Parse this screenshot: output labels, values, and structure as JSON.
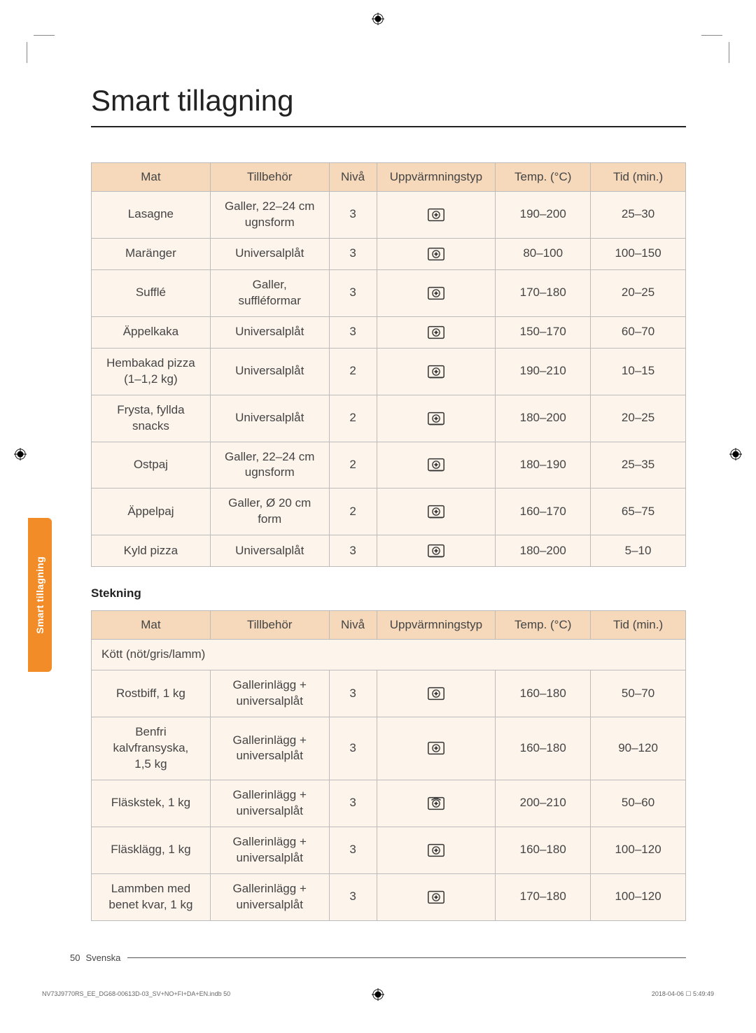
{
  "page_title": "Smart tillagning",
  "side_tab": "Smart tillagning",
  "section2_label": "Stekning",
  "footer": {
    "page_num": "50",
    "language": "Svenska"
  },
  "printer": {
    "left": "NV73J9770RS_EE_DG68-00613D-03_SV+NO+FI+DA+EN.indb   50",
    "right": "2018-04-06   ☐ 5:49:49"
  },
  "columns": [
    {
      "key": "mat",
      "label": "Mat"
    },
    {
      "key": "till",
      "label": "Tillbehör"
    },
    {
      "key": "niva",
      "label": "Nivå"
    },
    {
      "key": "upp",
      "label": "Uppvärmningstyp"
    },
    {
      "key": "temp",
      "label": "Temp. (°C)"
    },
    {
      "key": "tid",
      "label": "Tid (min.)"
    }
  ],
  "icons": {
    "fan_box": {
      "outline": "#333",
      "fan": "#333",
      "bottom_line": false,
      "top_arc": false
    },
    "fan_box_bottom": {
      "outline": "#333",
      "fan": "#333",
      "bottom_line": true,
      "top_arc": false
    },
    "fan_box_top": {
      "outline": "#333",
      "fan": "#333",
      "bottom_line": false,
      "top_arc": true
    }
  },
  "table1": {
    "rows": [
      {
        "mat": "Lasagne",
        "till": "Galler, 22–24 cm\nugnsform",
        "niva": "3",
        "icon": "fan_box",
        "temp": "190–200",
        "tid": "25–30"
      },
      {
        "mat": "Maränger",
        "till": "Universalplåt",
        "niva": "3",
        "icon": "fan_box",
        "temp": "80–100",
        "tid": "100–150"
      },
      {
        "mat": "Sufflé",
        "till": "Galler,\nsuffléformar",
        "niva": "3",
        "icon": "fan_box",
        "temp": "170–180",
        "tid": "20–25"
      },
      {
        "mat": "Äppelkaka",
        "till": "Universalplåt",
        "niva": "3",
        "icon": "fan_box",
        "temp": "150–170",
        "tid": "60–70"
      },
      {
        "mat": "Hembakad pizza\n(1–1,2 kg)",
        "till": "Universalplåt",
        "niva": "2",
        "icon": "fan_box_bottom",
        "temp": "190–210",
        "tid": "10–15"
      },
      {
        "mat": "Frysta, fyllda\nsnacks",
        "till": "Universalplåt",
        "niva": "2",
        "icon": "fan_box_bottom",
        "temp": "180–200",
        "tid": "20–25"
      },
      {
        "mat": "Ostpaj",
        "till": "Galler, 22–24 cm\nugnsform",
        "niva": "2",
        "icon": "fan_box_bottom",
        "temp": "180–190",
        "tid": "25–35"
      },
      {
        "mat": "Äppelpaj",
        "till": "Galler, Ø 20 cm\nform",
        "niva": "2",
        "icon": "fan_box_bottom",
        "temp": "160–170",
        "tid": "65–75"
      },
      {
        "mat": "Kyld pizza",
        "till": "Universalplåt",
        "niva": "3",
        "icon": "fan_box_bottom",
        "temp": "180–200",
        "tid": "5–10"
      }
    ]
  },
  "table2": {
    "subheader": "Kött (nöt/gris/lamm)",
    "rows": [
      {
        "mat": "Rostbiff, 1 kg",
        "till": "Gallerinlägg +\nuniversalplåt",
        "niva": "3",
        "icon": "fan_box",
        "temp": "160–180",
        "tid": "50–70"
      },
      {
        "mat": "Benfri\nkalvfransyska,\n1,5 kg",
        "till": "Gallerinlägg +\nuniversalplåt",
        "niva": "3",
        "icon": "fan_box",
        "temp": "160–180",
        "tid": "90–120"
      },
      {
        "mat": "Fläskstek, 1 kg",
        "till": "Gallerinlägg +\nuniversalplåt",
        "niva": "3",
        "icon": "fan_box_top",
        "temp": "200–210",
        "tid": "50–60"
      },
      {
        "mat": "Fläsklägg, 1 kg",
        "till": "Gallerinlägg +\nuniversalplåt",
        "niva": "3",
        "icon": "fan_box",
        "temp": "160–180",
        "tid": "100–120"
      },
      {
        "mat": "Lammben med\nbenet kvar, 1 kg",
        "till": "Gallerinlägg +\nuniversalplåt",
        "niva": "3",
        "icon": "fan_box",
        "temp": "170–180",
        "tid": "100–120"
      }
    ]
  },
  "colors": {
    "header_bg": "#f6d9bb",
    "cell_bg": "#fdf4ec",
    "border": "#bbbbbb",
    "tab": "#f28c28",
    "text": "#333333"
  }
}
